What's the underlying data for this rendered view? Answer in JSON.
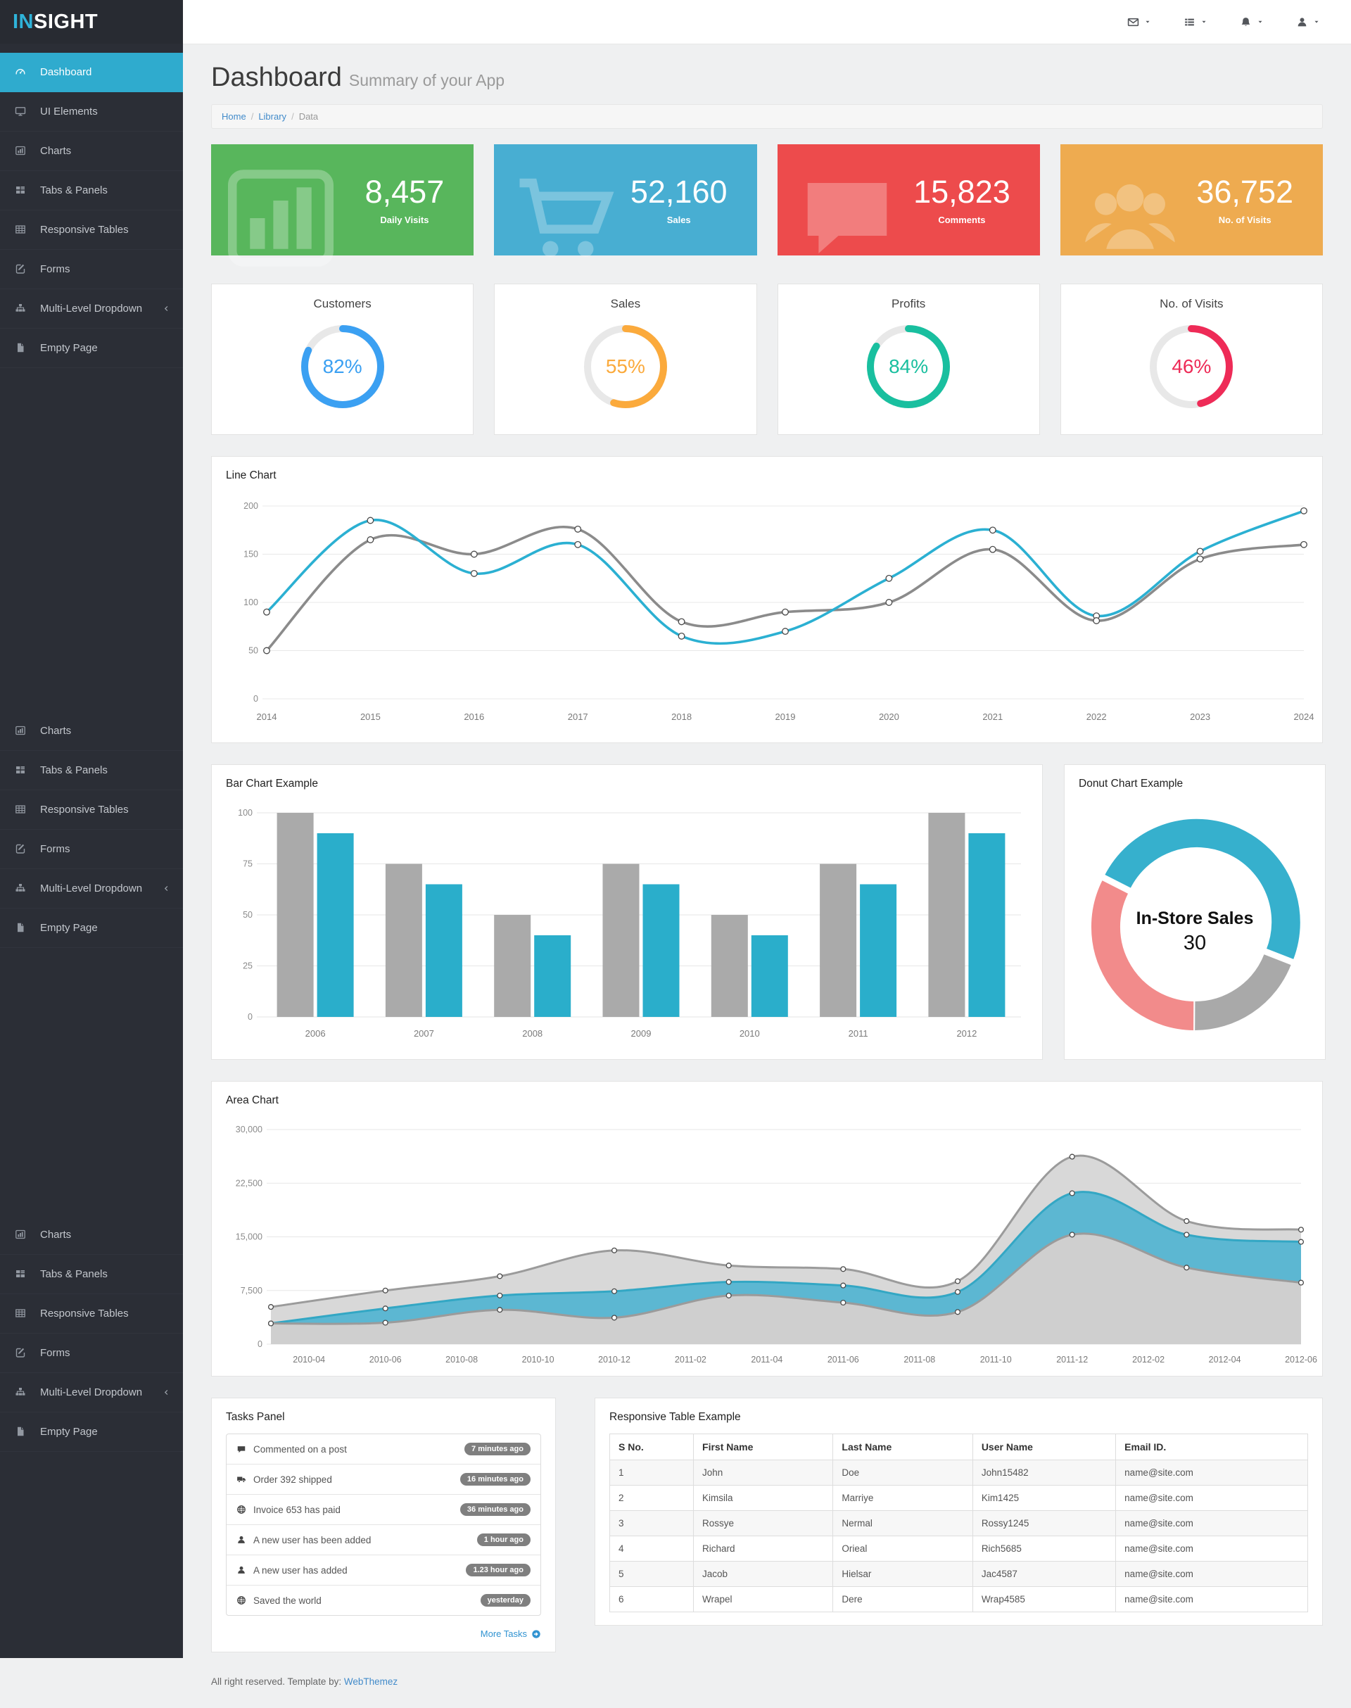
{
  "app": {
    "logo_accent": "IN",
    "logo_rest": "SIGHT"
  },
  "header": {
    "icons": [
      {
        "name": "envelope",
        "menu": "messages-menu"
      },
      {
        "name": "list",
        "menu": "tasks-menu"
      },
      {
        "name": "bell",
        "menu": "notifications-menu"
      },
      {
        "name": "user",
        "menu": "user-menu"
      }
    ]
  },
  "sidebar": {
    "groups": [
      {
        "items": [
          {
            "icon": "gauge",
            "label": "Dashboard",
            "active": true
          },
          {
            "icon": "monitor",
            "label": "UI Elements"
          },
          {
            "icon": "charts",
            "label": "Charts"
          },
          {
            "icon": "tabs",
            "label": "Tabs & Panels"
          },
          {
            "icon": "table",
            "label": "Responsive Tables"
          },
          {
            "icon": "forms",
            "label": "Forms"
          },
          {
            "icon": "sitemap",
            "label": "Multi-Level Dropdown",
            "chevron": true
          },
          {
            "icon": "file",
            "label": "Empty Page"
          }
        ]
      },
      {
        "items": [
          {
            "icon": "charts",
            "label": "Charts"
          },
          {
            "icon": "tabs",
            "label": "Tabs & Panels"
          },
          {
            "icon": "table",
            "label": "Responsive Tables"
          },
          {
            "icon": "forms",
            "label": "Forms"
          },
          {
            "icon": "sitemap",
            "label": "Multi-Level Dropdown",
            "chevron": true
          },
          {
            "icon": "file",
            "label": "Empty Page"
          }
        ]
      },
      {
        "items": [
          {
            "icon": "charts",
            "label": "Charts"
          },
          {
            "icon": "tabs",
            "label": "Tabs & Panels"
          },
          {
            "icon": "table",
            "label": "Responsive Tables"
          },
          {
            "icon": "forms",
            "label": "Forms"
          },
          {
            "icon": "sitemap",
            "label": "Multi-Level Dropdown",
            "chevron": true
          },
          {
            "icon": "file",
            "label": "Empty Page"
          }
        ]
      }
    ]
  },
  "page": {
    "title": "Dashboard",
    "subtitle": "Summary of your App",
    "breadcrumb": [
      {
        "label": "Home",
        "link": true
      },
      {
        "label": "Library",
        "link": true
      },
      {
        "label": "Data",
        "link": false
      }
    ]
  },
  "stat_cards": [
    {
      "value": "8,457",
      "label": "Daily Visits",
      "color": "#58b65c",
      "icon": "chart-bars-big"
    },
    {
      "value": "52,160",
      "label": "Sales",
      "color": "#48aed2",
      "icon": "cart-big"
    },
    {
      "value": "15,823",
      "label": "Comments",
      "color": "#ed4b4c",
      "icon": "comment-big"
    },
    {
      "value": "36,752",
      "label": "No. of Visits",
      "color": "#eeab50",
      "icon": "users-big"
    }
  ],
  "gauges": [
    {
      "title": "Customers",
      "percent": 82,
      "label": "82%",
      "color": "#3ba0f2"
    },
    {
      "title": "Sales",
      "percent": 55,
      "label": "55%",
      "color": "#fbaa3c"
    },
    {
      "title": "Profits",
      "percent": 84,
      "label": "84%",
      "color": "#19bf9f"
    },
    {
      "title": "No. of Visits",
      "percent": 46,
      "label": "46%",
      "color": "#ee2b57"
    }
  ],
  "panels": {
    "line": "Line Chart",
    "bar": "Bar Chart Example",
    "donut": "Donut Chart Example",
    "area": "Area Chart",
    "tasks": "Tasks Panel",
    "table": "Responsive Table Example"
  },
  "chart_data": [
    {
      "id": "line",
      "type": "line",
      "title": "Line Chart",
      "categories": [
        "2014",
        "2015",
        "2016",
        "2017",
        "2018",
        "2019",
        "2020",
        "2021",
        "2022",
        "2023",
        "2024"
      ],
      "ylim": [
        0,
        200
      ],
      "yticks": [
        0,
        50,
        100,
        150,
        200
      ],
      "grid": true,
      "legend": "none",
      "series": [
        {
          "name": "cyan-series",
          "color": "#2bb0d2",
          "values": [
            90,
            185,
            130,
            160,
            65,
            70,
            125,
            175,
            86,
            153,
            195
          ]
        },
        {
          "name": "gray-series",
          "color": "#8b8b8b",
          "values": [
            50,
            165,
            150,
            176,
            80,
            90,
            100,
            155,
            81,
            145,
            160
          ]
        }
      ]
    },
    {
      "id": "bar",
      "type": "bar",
      "title": "Bar Chart Example",
      "categories": [
        "2006",
        "2007",
        "2008",
        "2009",
        "2010",
        "2011",
        "2012"
      ],
      "ylim": [
        0,
        100
      ],
      "yticks": [
        0,
        25,
        50,
        75,
        100
      ],
      "grid": true,
      "legend": "none",
      "series": [
        {
          "name": "gray-bars",
          "color": "#aaaaaa",
          "values": [
            100,
            75,
            50,
            75,
            50,
            75,
            100
          ]
        },
        {
          "name": "blue-bars",
          "color": "#2aaecb",
          "values": [
            90,
            65,
            40,
            65,
            40,
            65,
            90
          ]
        }
      ]
    },
    {
      "id": "donut",
      "type": "pie",
      "title": "Donut Chart Example",
      "center_label": "In-Store Sales",
      "center_value": "30",
      "start_angle": 297,
      "slices": [
        {
          "name": "blue",
          "value": 48.4,
          "color": "#36b0cd",
          "exploded": true
        },
        {
          "name": "gray",
          "value": 19.2,
          "color": "#a9a9a9",
          "exploded": false
        },
        {
          "name": "salmon",
          "value": 32.4,
          "color": "#f28b8b",
          "exploded": false
        }
      ]
    },
    {
      "id": "area",
      "type": "area",
      "title": "Area Chart",
      "x": [
        "2010-03",
        "2010-06",
        "2010-09",
        "2010-12",
        "2011-03",
        "2011-06",
        "2011-09",
        "2011-12",
        "2012-03",
        "2012-06"
      ],
      "x_tick_labels": [
        "2010-04",
        "2010-06",
        "2010-08",
        "2010-10",
        "2010-12",
        "2011-02",
        "2011-04",
        "2011-06",
        "2011-08",
        "2011-10",
        "2011-12",
        "2012-02",
        "2012-04",
        "2012-06"
      ],
      "ylim": [
        0,
        30000
      ],
      "yticks": [
        0,
        7500,
        15000,
        22500,
        30000
      ],
      "grid": true,
      "legend": "none",
      "series": [
        {
          "name": "upper-gray",
          "stroke": "#9b9b9b",
          "fill": "#d8d8d8",
          "values": [
            5200,
            7500,
            9500,
            13100,
            11000,
            10500,
            8800,
            26200,
            17200,
            16000
          ]
        },
        {
          "name": "blue",
          "stroke": "#33a7c4",
          "fill": "#5cb7d2",
          "values": [
            2900,
            5000,
            6800,
            7400,
            8700,
            8200,
            7300,
            21100,
            15300,
            14300
          ]
        },
        {
          "name": "lower-gray",
          "stroke": "#9b9b9b",
          "fill": "#cfcfcf",
          "values": [
            2900,
            3000,
            4800,
            3700,
            6800,
            5800,
            4500,
            15300,
            10700,
            8600
          ]
        }
      ]
    }
  ],
  "tasks": {
    "items": [
      {
        "icon": "comment",
        "text": "Commented on a post",
        "badge": "7 minutes ago"
      },
      {
        "icon": "truck",
        "text": "Order 392 shipped",
        "badge": "16 minutes ago"
      },
      {
        "icon": "globe",
        "text": "Invoice 653 has paid",
        "badge": "36 minutes ago"
      },
      {
        "icon": "user",
        "text": "A new user has been added",
        "badge": "1 hour ago"
      },
      {
        "icon": "user",
        "text": "A new user has added",
        "badge": "1.23 hour ago"
      },
      {
        "icon": "globe",
        "text": "Saved the world",
        "badge": "yesterday"
      }
    ],
    "more_label": "More Tasks"
  },
  "table": {
    "headers": [
      "S No.",
      "First Name",
      "Last Name",
      "User Name",
      "Email ID."
    ],
    "col_widths": [
      "12%",
      "20%",
      "20%",
      "20.5%",
      "27.5%"
    ],
    "rows": [
      [
        "1",
        "John",
        "Doe",
        "John15482",
        "name@site.com"
      ],
      [
        "2",
        "Kimsila",
        "Marriye",
        "Kim1425",
        "name@site.com"
      ],
      [
        "3",
        "Rossye",
        "Nermal",
        "Rossy1245",
        "name@site.com"
      ],
      [
        "4",
        "Richard",
        "Orieal",
        "Rich5685",
        "name@site.com"
      ],
      [
        "5",
        "Jacob",
        "Hielsar",
        "Jac4587",
        "name@site.com"
      ],
      [
        "6",
        "Wrapel",
        "Dere",
        "Wrap4585",
        "name@site.com"
      ]
    ]
  },
  "footer": {
    "text": "All right reserved. Template by:",
    "link_label": "WebThemez"
  }
}
